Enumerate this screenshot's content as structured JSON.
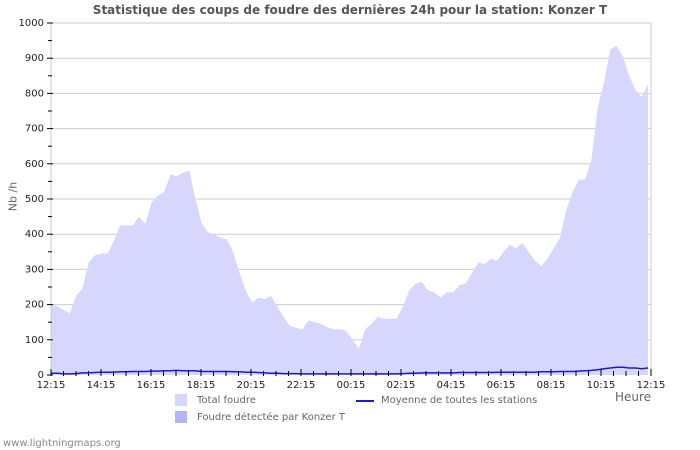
{
  "header": {
    "title": "Statistique des coups de foudre des dernières 24h pour la station: Konzer T"
  },
  "axes": {
    "ylabel": "Nb /h",
    "xlabel": "Heure"
  },
  "legend": {
    "total": "Total foudre",
    "detected": "Foudre détectée par Konzer T",
    "average": "Moyenne de toutes les stations"
  },
  "colors": {
    "total_fill": "#d7d7fe",
    "detected_fill": "#b4b4fb",
    "average_line": "#1b1bcc",
    "grid": "#cccccc"
  },
  "footer": {
    "source": "www.lightningmaps.org"
  },
  "chart_data": {
    "type": "area",
    "title": "Statistique des coups de foudre des dernières 24h pour la station: Konzer T",
    "xlabel": "Heure",
    "ylabel": "Nb /h",
    "ylim": [
      0,
      1000
    ],
    "yticks": [
      0,
      100,
      200,
      300,
      400,
      500,
      600,
      700,
      800,
      900,
      1000
    ],
    "xticks": [
      "12:15",
      "14:15",
      "16:15",
      "18:15",
      "20:15",
      "22:15",
      "00:15",
      "02:15",
      "04:15",
      "06:15",
      "08:15",
      "10:15",
      "12:15"
    ],
    "grid": true,
    "legend_position": "bottom",
    "x_interval_minutes": 15,
    "series": [
      {
        "name": "Total foudre",
        "type": "area",
        "values": [
          200,
          195,
          185,
          175,
          225,
          245,
          320,
          340,
          345,
          345,
          380,
          425,
          425,
          425,
          450,
          430,
          490,
          510,
          520,
          570,
          565,
          575,
          580,
          500,
          430,
          405,
          400,
          390,
          385,
          350,
          290,
          240,
          205,
          220,
          215,
          225,
          195,
          165,
          140,
          135,
          130,
          155,
          150,
          145,
          135,
          130,
          130,
          125,
          100,
          75,
          130,
          145,
          165,
          160,
          160,
          160,
          195,
          240,
          260,
          265,
          240,
          235,
          220,
          235,
          235,
          255,
          260,
          290,
          320,
          315,
          330,
          325,
          350,
          370,
          360,
          375,
          350,
          325,
          310,
          330,
          360,
          390,
          470,
          520,
          555,
          555,
          610,
          760,
          830,
          925,
          935,
          905,
          850,
          810,
          790,
          825
        ]
      },
      {
        "name": "Foudre détectée par Konzer T",
        "type": "area",
        "values": [
          0
        ]
      },
      {
        "name": "Moyenne de toutes les stations",
        "type": "line",
        "values": [
          5,
          5,
          3,
          3,
          4,
          6,
          6,
          7,
          8,
          8,
          8,
          9,
          9,
          10,
          10,
          10,
          11,
          11,
          12,
          12,
          13,
          12,
          12,
          12,
          10,
          10,
          10,
          10,
          10,
          9,
          9,
          8,
          8,
          7,
          6,
          5,
          5,
          4,
          4,
          4,
          3,
          3,
          3,
          3,
          3,
          3,
          3,
          3,
          3,
          3,
          3,
          3,
          3,
          3,
          3,
          3,
          4,
          5,
          5,
          6,
          6,
          6,
          6,
          6,
          6,
          7,
          7,
          7,
          7,
          7,
          7,
          8,
          8,
          8,
          8,
          8,
          8,
          8,
          9,
          9,
          9,
          10,
          10,
          10,
          11,
          12,
          13,
          15,
          18,
          20,
          22,
          22,
          20,
          20,
          18,
          20
        ]
      }
    ]
  }
}
